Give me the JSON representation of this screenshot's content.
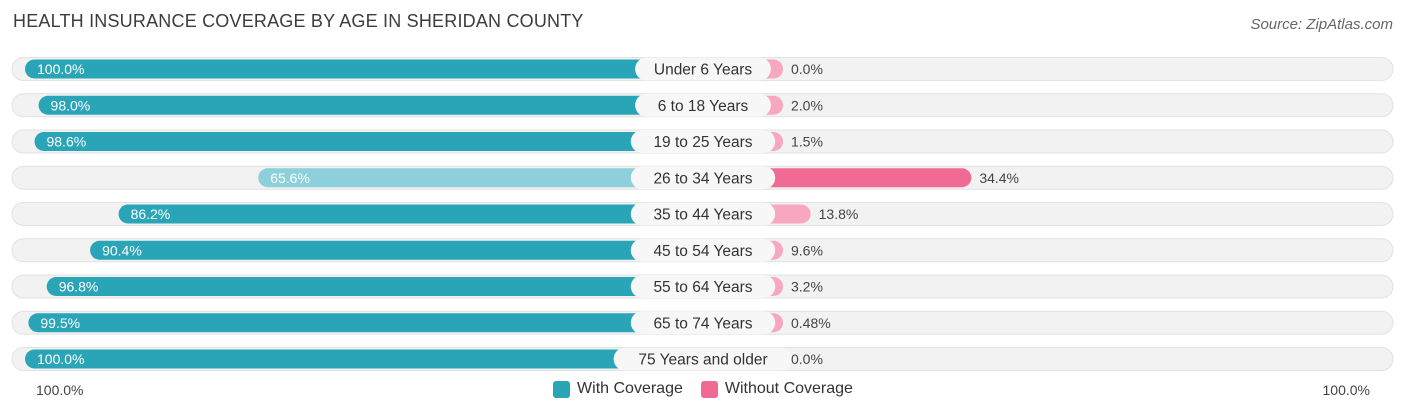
{
  "header": {
    "title": "HEALTH INSURANCE COVERAGE BY AGE IN SHERIDAN COUNTY",
    "source": "Source: ZipAtlas.com"
  },
  "colors": {
    "with_strong": "#2aa5b7",
    "with_light": "#8dd0db",
    "without_strong": "#f06a94",
    "without_light": "#f7a8c0",
    "track": "#efefef"
  },
  "chart_data": {
    "type": "bar",
    "title": "HEALTH INSURANCE COVERAGE BY AGE IN SHERIDAN COUNTY",
    "orientation": "horizontal-diverging",
    "categories": [
      "Under 6 Years",
      "6 to 18 Years",
      "19 to 25 Years",
      "26 to 34 Years",
      "35 to 44 Years",
      "45 to 54 Years",
      "55 to 64 Years",
      "65 to 74 Years",
      "75 Years and older"
    ],
    "series": [
      {
        "name": "With Coverage",
        "values": [
          100.0,
          98.0,
          98.6,
          65.6,
          86.2,
          90.4,
          96.8,
          99.5,
          100.0
        ],
        "labels": [
          "100.0%",
          "98.0%",
          "98.6%",
          "65.6%",
          "86.2%",
          "90.4%",
          "96.8%",
          "99.5%",
          "100.0%"
        ]
      },
      {
        "name": "Without Coverage",
        "values": [
          0.0,
          2.0,
          1.5,
          34.4,
          13.8,
          9.6,
          3.2,
          0.48,
          0.0
        ],
        "labels": [
          "0.0%",
          "2.0%",
          "1.5%",
          "34.4%",
          "13.8%",
          "9.6%",
          "3.2%",
          "0.48%",
          "0.0%"
        ]
      }
    ],
    "xlim": [
      0,
      100
    ],
    "axis_left_label": "100.0%",
    "axis_right_label": "100.0%",
    "legend_position": "bottom-center"
  }
}
